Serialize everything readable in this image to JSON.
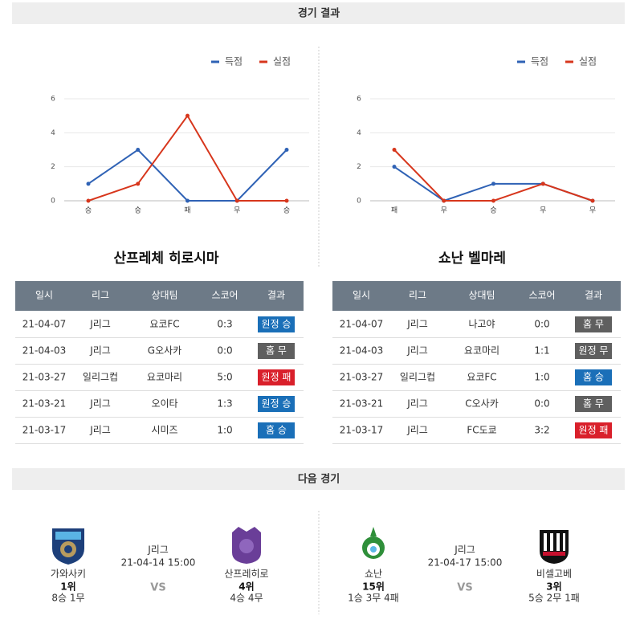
{
  "results_title": "경기 결과",
  "next_title": "다음 경기",
  "chart_data": [
    {
      "type": "line",
      "categories": [
        "승",
        "승",
        "패",
        "무",
        "승"
      ],
      "series": [
        {
          "name": "득점",
          "color": "#2f62b5",
          "values": [
            1,
            3,
            0,
            0,
            3
          ]
        },
        {
          "name": "실점",
          "color": "#d7361c",
          "values": [
            0,
            1,
            5,
            0,
            0
          ]
        }
      ],
      "ylim": [
        0,
        6
      ],
      "yticks": [
        0,
        2,
        4,
        6
      ],
      "grid": true,
      "legend": "top-right"
    },
    {
      "type": "line",
      "categories": [
        "패",
        "무",
        "승",
        "무",
        "무"
      ],
      "series": [
        {
          "name": "득점",
          "color": "#2f62b5",
          "values": [
            2,
            0,
            1,
            1,
            0
          ]
        },
        {
          "name": "실점",
          "color": "#d7361c",
          "values": [
            3,
            0,
            0,
            1,
            0
          ]
        }
      ],
      "ylim": [
        0,
        6
      ],
      "yticks": [
        0,
        2,
        4,
        6
      ],
      "grid": true,
      "legend": "top-right"
    }
  ],
  "results": [
    {
      "team": "산프레체 히로시마",
      "columns": [
        "일시",
        "리그",
        "상대팀",
        "스코어",
        "결과"
      ],
      "rows": [
        {
          "date": "21-04-07",
          "league": "J리그",
          "opponent": "요코FC",
          "score": "0:3",
          "result": "원정 승",
          "color": "#1a6fb8"
        },
        {
          "date": "21-04-03",
          "league": "J리그",
          "opponent": "G오사카",
          "score": "0:0",
          "result": "홈 무",
          "color": "#5f5f5f"
        },
        {
          "date": "21-03-27",
          "league": "일리그컵",
          "opponent": "요코마리",
          "score": "5:0",
          "result": "원정 패",
          "color": "#d9202b"
        },
        {
          "date": "21-03-21",
          "league": "J리그",
          "opponent": "오이타",
          "score": "1:3",
          "result": "원정 승",
          "color": "#1a6fb8"
        },
        {
          "date": "21-03-17",
          "league": "J리그",
          "opponent": "시미즈",
          "score": "1:0",
          "result": "홈 승",
          "color": "#1a6fb8"
        }
      ]
    },
    {
      "team": "쇼난 벨마레",
      "columns": [
        "일시",
        "리그",
        "상대팀",
        "스코어",
        "결과"
      ],
      "rows": [
        {
          "date": "21-04-07",
          "league": "J리그",
          "opponent": "나고야",
          "score": "0:0",
          "result": "홈 무",
          "color": "#5f5f5f"
        },
        {
          "date": "21-04-03",
          "league": "J리그",
          "opponent": "요코마리",
          "score": "1:1",
          "result": "원정 무",
          "color": "#5f5f5f"
        },
        {
          "date": "21-03-27",
          "league": "일리그컵",
          "opponent": "요코FC",
          "score": "1:0",
          "result": "홈 승",
          "color": "#1a6fb8"
        },
        {
          "date": "21-03-21",
          "league": "J리그",
          "opponent": "C오사카",
          "score": "0:0",
          "result": "홈 무",
          "color": "#5f5f5f"
        },
        {
          "date": "21-03-17",
          "league": "J리그",
          "opponent": "FC도쿄",
          "score": "3:2",
          "result": "원정 패",
          "color": "#d9202b"
        }
      ]
    }
  ],
  "next_matches": [
    {
      "home": {
        "name": "가와사키",
        "rank": "1위",
        "record": "8승 1무"
      },
      "league": "J리그",
      "datetime": "21-04-14 15:00",
      "vs": "VS",
      "away": {
        "name": "산프레히로",
        "rank": "4위",
        "record": "4승 4무"
      }
    },
    {
      "home": {
        "name": "쇼난",
        "rank": "15위",
        "record": "1승 3무 4패"
      },
      "league": "J리그",
      "datetime": "21-04-17 15:00",
      "vs": "VS",
      "away": {
        "name": "비셀고베",
        "rank": "3위",
        "record": "5승 2무 1패"
      }
    }
  ]
}
